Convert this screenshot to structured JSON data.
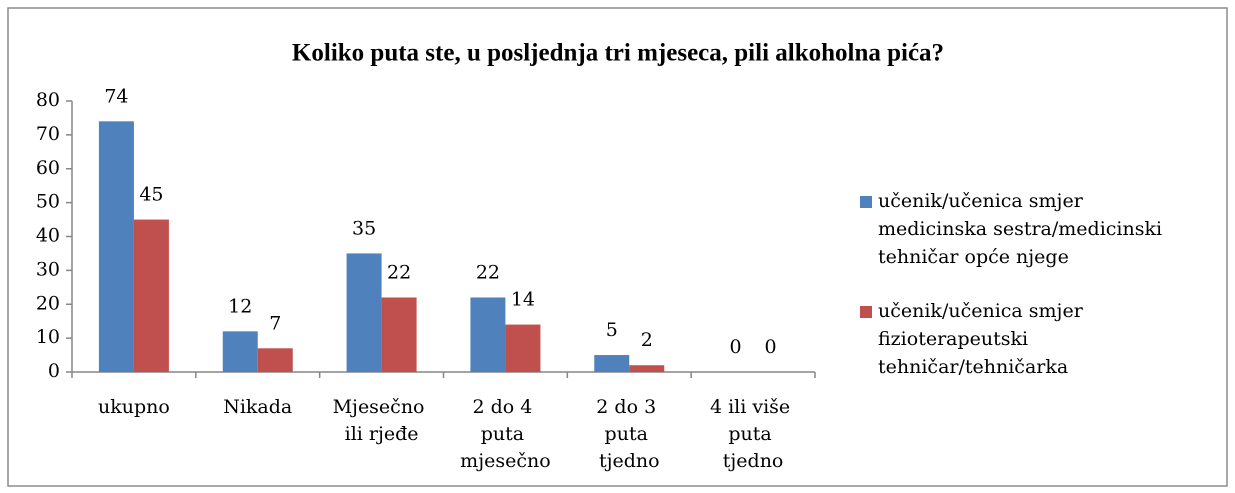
{
  "chart_data": {
    "type": "bar",
    "title": "Koliko puta ste, u posljednja tri mjeseca, pili alkoholna pića?",
    "categories": [
      "ukupno",
      "Nikada",
      "Mjesečno ili rjeđe",
      "2 do 4 puta mjesečno",
      "2 do 3 puta tjedno",
      "4 ili više puta tjedno"
    ],
    "series": [
      {
        "name": "učenik/učenica smjer medicinska sestra/medicinski tehničar opće njege",
        "color": "#4f81bd",
        "values": [
          74,
          12,
          35,
          22,
          5,
          0
        ]
      },
      {
        "name": "učenik/učenica smjer fizioterapeutski tehničar/tehničarka",
        "color": "#c0504d",
        "values": [
          45,
          7,
          22,
          14,
          2,
          0
        ]
      }
    ],
    "ylim": [
      0,
      80
    ],
    "yticks": [
      0,
      10,
      20,
      30,
      40,
      50,
      60,
      70,
      80
    ],
    "legend": "right",
    "grid": false
  }
}
